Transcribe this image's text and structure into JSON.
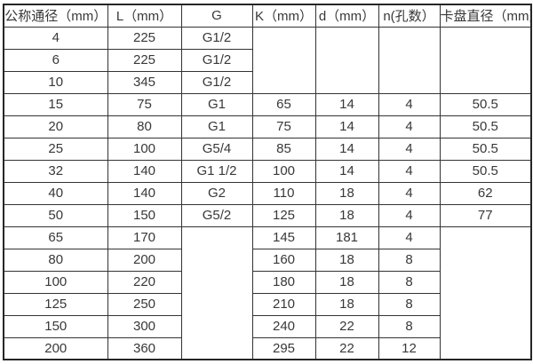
{
  "colors": {
    "background": "#ffffff",
    "border": "#333333",
    "text": "#383838"
  },
  "table": {
    "headers": {
      "dn": "公称通径（mm）",
      "l": "L（mm）",
      "g": "G",
      "k": "K（mm）",
      "d": "d（mm）",
      "n": "n(孔数）",
      "chuck": "卡盘直径（mm）"
    },
    "rows": [
      {
        "dn": "4",
        "l": "225",
        "g": "G1/2"
      },
      {
        "dn": "6",
        "l": "225",
        "g": "G1/2"
      },
      {
        "dn": "10",
        "l": "345",
        "g": "G1/2"
      },
      {
        "dn": "15",
        "l": "75",
        "g": "G1",
        "k": "65",
        "d": "14",
        "n": "4",
        "chuck": "50.5"
      },
      {
        "dn": "20",
        "l": "80",
        "g": "G1",
        "k": "75",
        "d": "14",
        "n": "4",
        "chuck": "50.5"
      },
      {
        "dn": "25",
        "l": "100",
        "g": "G5/4",
        "k": "85",
        "d": "14",
        "n": "4",
        "chuck": "50.5"
      },
      {
        "dn": "32",
        "l": "140",
        "g": "G1 1/2",
        "k": "100",
        "d": "14",
        "n": "4",
        "chuck": "50.5"
      },
      {
        "dn": "40",
        "l": "140",
        "g": "G2",
        "k": "110",
        "d": "18",
        "n": "4",
        "chuck": "62"
      },
      {
        "dn": "50",
        "l": "150",
        "g": "G5/2",
        "k": "125",
        "d": "18",
        "n": "4",
        "chuck": "77"
      },
      {
        "dn": "65",
        "l": "170",
        "k": "145",
        "d": "181",
        "n": "4"
      },
      {
        "dn": "80",
        "l": "200",
        "k": "160",
        "d": "18",
        "n": "8"
      },
      {
        "dn": "100",
        "l": "220",
        "k": "180",
        "d": "18",
        "n": "8"
      },
      {
        "dn": "125",
        "l": "250",
        "k": "210",
        "d": "18",
        "n": "8"
      },
      {
        "dn": "150",
        "l": "300",
        "k": "240",
        "d": "22",
        "n": "8"
      },
      {
        "dn": "200",
        "l": "360",
        "k": "295",
        "d": "22",
        "n": "12"
      }
    ]
  }
}
